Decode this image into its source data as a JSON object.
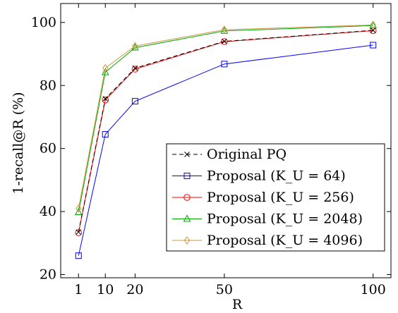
{
  "chart_data": {
    "type": "line",
    "xlabel": "R",
    "ylabel": "1-recall@R (%)",
    "xlim": [
      -5,
      106
    ],
    "ylim": [
      19,
      106
    ],
    "x_ticks": [
      1,
      10,
      20,
      50,
      100
    ],
    "y_ticks": [
      20,
      40,
      60,
      80,
      100
    ],
    "grid": false,
    "legend_position": "bottom-right",
    "series": [
      {
        "name": "Original PQ",
        "color": "#000000",
        "marker": "x",
        "dashed": true,
        "x": [
          1,
          10,
          20,
          50,
          100
        ],
        "y": [
          33.5,
          75.8,
          85.5,
          94.0,
          97.5
        ]
      },
      {
        "name": "Proposal (K_U = 64)",
        "color": "#0000ff",
        "marker": "square",
        "dashed": false,
        "x": [
          1,
          10,
          20,
          50,
          100
        ],
        "y": [
          26.0,
          64.5,
          75.0,
          86.8,
          92.8
        ]
      },
      {
        "name": "Proposal (K_U = 256)",
        "color": "#ff0000",
        "marker": "circle",
        "dashed": false,
        "x": [
          1,
          10,
          20,
          50,
          100
        ],
        "y": [
          33.3,
          75.4,
          85.2,
          93.9,
          97.4
        ]
      },
      {
        "name": "Proposal (K_U = 2048)",
        "color": "#00aa00",
        "marker": "triangle",
        "dashed": false,
        "x": [
          1,
          10,
          20,
          50,
          100
        ],
        "y": [
          39.8,
          84.2,
          92.0,
          97.3,
          99.0
        ]
      },
      {
        "name": "Proposal (K_U = 4096)",
        "color": "#cc9944",
        "marker": "diamond",
        "dashed": false,
        "x": [
          1,
          10,
          20,
          50,
          100
        ],
        "y": [
          41.0,
          85.5,
          92.5,
          97.7,
          99.2
        ]
      }
    ]
  }
}
